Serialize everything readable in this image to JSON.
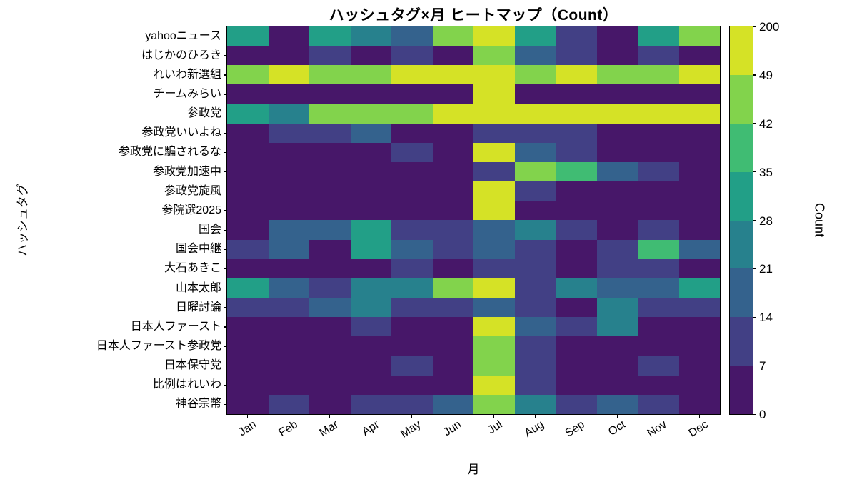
{
  "chart_data": {
    "type": "heatmap",
    "title": "ハッシュタグ×月 ヒートマップ（Count）",
    "xlabel": "月",
    "ylabel": "ハッシュタグ",
    "colormap": "viridis",
    "color_scale": "discrete uniform bins, boundaries shown on colorbar",
    "columns": [
      "Jan",
      "Feb",
      "Mar",
      "Apr",
      "May",
      "Jun",
      "Jul",
      "Aug",
      "Sep",
      "Oct",
      "Nov",
      "Dec"
    ],
    "rows": [
      "yahooニュース",
      "はじかのひろき",
      "れいわ新選組",
      "チームみらい",
      "参政党",
      "参政党いいよね",
      "参政党に騙されるな",
      "参政党加速中",
      "参政党旋風",
      "参院選2025",
      "国会",
      "国会中継",
      "大石あきこ",
      "山本太郎",
      "日曜討論",
      "日本人ファースト",
      "日本人ファースト参政党",
      "日本保守党",
      "比例はれいわ",
      "神谷宗幣"
    ],
    "values": [
      [
        30,
        2,
        29,
        24,
        16,
        44,
        96,
        30,
        10,
        3,
        31,
        46
      ],
      [
        1,
        0,
        9,
        2,
        7,
        3,
        43,
        15,
        8,
        1,
        7,
        2
      ],
      [
        45,
        52,
        47,
        43,
        50,
        55,
        200,
        46,
        51,
        44,
        46,
        53
      ],
      [
        2,
        1,
        2,
        1,
        3,
        4,
        50,
        6,
        3,
        1,
        2,
        1
      ],
      [
        29,
        23,
        43,
        44,
        47,
        60,
        232,
        75,
        70,
        68,
        72,
        76
      ],
      [
        5,
        7,
        10,
        16,
        2,
        4,
        12,
        7,
        10,
        2,
        3,
        2
      ],
      [
        2,
        3,
        4,
        5,
        10,
        4,
        52,
        15,
        8,
        2,
        3,
        2
      ],
      [
        1,
        1,
        1,
        2,
        2,
        3,
        11,
        45,
        36,
        15,
        12,
        5
      ],
      [
        0,
        0,
        0,
        1,
        1,
        6,
        53,
        13,
        4,
        1,
        1,
        0
      ],
      [
        0,
        0,
        0,
        0,
        1,
        5,
        58,
        6,
        1,
        0,
        0,
        0
      ],
      [
        6,
        15,
        17,
        30,
        13,
        8,
        19,
        22,
        10,
        3,
        9,
        6
      ],
      [
        10,
        19,
        6,
        31,
        14,
        12,
        17,
        13,
        6,
        10,
        37,
        14
      ],
      [
        3,
        6,
        4,
        4,
        8,
        5,
        10,
        13,
        6,
        9,
        12,
        4
      ],
      [
        30,
        17,
        12,
        21,
        27,
        43,
        55,
        8,
        25,
        16,
        19,
        29
      ],
      [
        13,
        7,
        15,
        27,
        7,
        11,
        15,
        10,
        5,
        21,
        7,
        9
      ],
      [
        2,
        3,
        5,
        8,
        4,
        5,
        50,
        15,
        12,
        25,
        5,
        4
      ],
      [
        0,
        1,
        1,
        1,
        2,
        3,
        44,
        7,
        2,
        1,
        1,
        1
      ],
      [
        4,
        2,
        4,
        3,
        8,
        5,
        43,
        7,
        4,
        3,
        11,
        4
      ],
      [
        1,
        1,
        2,
        2,
        3,
        5,
        54,
        11,
        3,
        1,
        2,
        1
      ],
      [
        4,
        10,
        6,
        13,
        7,
        15,
        45,
        23,
        8,
        17,
        13,
        5
      ]
    ],
    "colorbar": {
      "label": "Count",
      "boundaries": [
        0,
        7,
        14,
        21,
        28,
        35,
        42,
        49,
        200
      ]
    }
  }
}
